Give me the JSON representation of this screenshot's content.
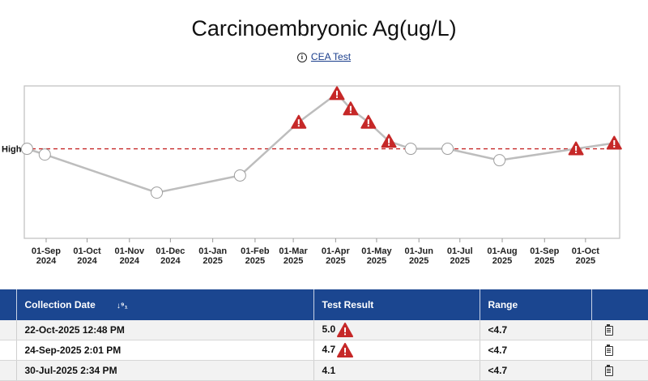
{
  "page": {
    "title": "Carcinoembryonic Ag(ug/L)",
    "subtitle_link": "CEA Test",
    "subtitle_icon": "info-icon"
  },
  "chart_data": {
    "type": "line",
    "x_ticks": [
      {
        "label": [
          "01-Sep",
          "2024"
        ],
        "date": "2024-09-01"
      },
      {
        "label": [
          "01-Oct",
          "2024"
        ],
        "date": "2024-10-01"
      },
      {
        "label": [
          "01-Nov",
          "2024"
        ],
        "date": "2024-11-01"
      },
      {
        "label": [
          "01-Dec",
          "2024"
        ],
        "date": "2024-12-01"
      },
      {
        "label": [
          "01-Jan",
          "2025"
        ],
        "date": "2025-01-01"
      },
      {
        "label": [
          "01-Feb",
          "2025"
        ],
        "date": "2025-02-01"
      },
      {
        "label": [
          "01-Mar",
          "2025"
        ],
        "date": "2025-03-01"
      },
      {
        "label": [
          "01-Apr",
          "2025"
        ],
        "date": "2025-04-01"
      },
      {
        "label": [
          "01-May",
          "2025"
        ],
        "date": "2025-05-01"
      },
      {
        "label": [
          "01-Jun",
          "2025"
        ],
        "date": "2025-06-01"
      },
      {
        "label": [
          "01-Jul",
          "2025"
        ],
        "date": "2025-07-01"
      },
      {
        "label": [
          "01-Aug",
          "2025"
        ],
        "date": "2025-08-01"
      },
      {
        "label": [
          "01-Sep",
          "2025"
        ],
        "date": "2025-09-01"
      },
      {
        "label": [
          "01-Oct",
          "2025"
        ],
        "date": "2025-10-01"
      }
    ],
    "x_range": [
      "2024-08-16",
      "2025-10-26"
    ],
    "y_range": [
      0,
      8.0
    ],
    "threshold": {
      "label": "High",
      "value": 4.7,
      "color": "#c62828"
    },
    "points": [
      {
        "date": "2024-08-18",
        "value": 4.7,
        "flag": false
      },
      {
        "date": "2024-08-31",
        "value": 4.4,
        "flag": false
      },
      {
        "date": "2024-11-21",
        "value": 2.4,
        "flag": false
      },
      {
        "date": "2025-01-21",
        "value": 3.3,
        "flag": false
      },
      {
        "date": "2025-03-05",
        "value": 6.1,
        "flag": true
      },
      {
        "date": "2025-04-02",
        "value": 7.6,
        "flag": true
      },
      {
        "date": "2025-04-12",
        "value": 6.8,
        "flag": true
      },
      {
        "date": "2025-04-25",
        "value": 6.1,
        "flag": true
      },
      {
        "date": "2025-05-10",
        "value": 5.1,
        "flag": true
      },
      {
        "date": "2025-05-26",
        "value": 4.7,
        "flag": false
      },
      {
        "date": "2025-06-22",
        "value": 4.7,
        "flag": false
      },
      {
        "date": "2025-07-30",
        "value": 4.1,
        "flag": false
      },
      {
        "date": "2025-09-24",
        "value": 4.7,
        "flag": true
      },
      {
        "date": "2025-10-22",
        "value": 5.0,
        "flag": true
      }
    ],
    "colors": {
      "line": "#bdbdbd",
      "marker_fill": "#ffffff",
      "marker_stroke": "#9e9e9e",
      "flag": "#c62828"
    }
  },
  "table": {
    "headers": {
      "date": "Collection Date",
      "result": "Test Result",
      "range": "Range"
    },
    "rows": [
      {
        "date": "22-Oct-2025 12:48 PM",
        "result": "5.0",
        "range": "<4.7"
      },
      {
        "date": "24-Sep-2025 2:01 PM",
        "result": "4.7",
        "range": "<4.7"
      },
      {
        "date": "30-Jul-2025 2:34 PM",
        "result": "4.1",
        "range": "<4.7"
      }
    ]
  }
}
